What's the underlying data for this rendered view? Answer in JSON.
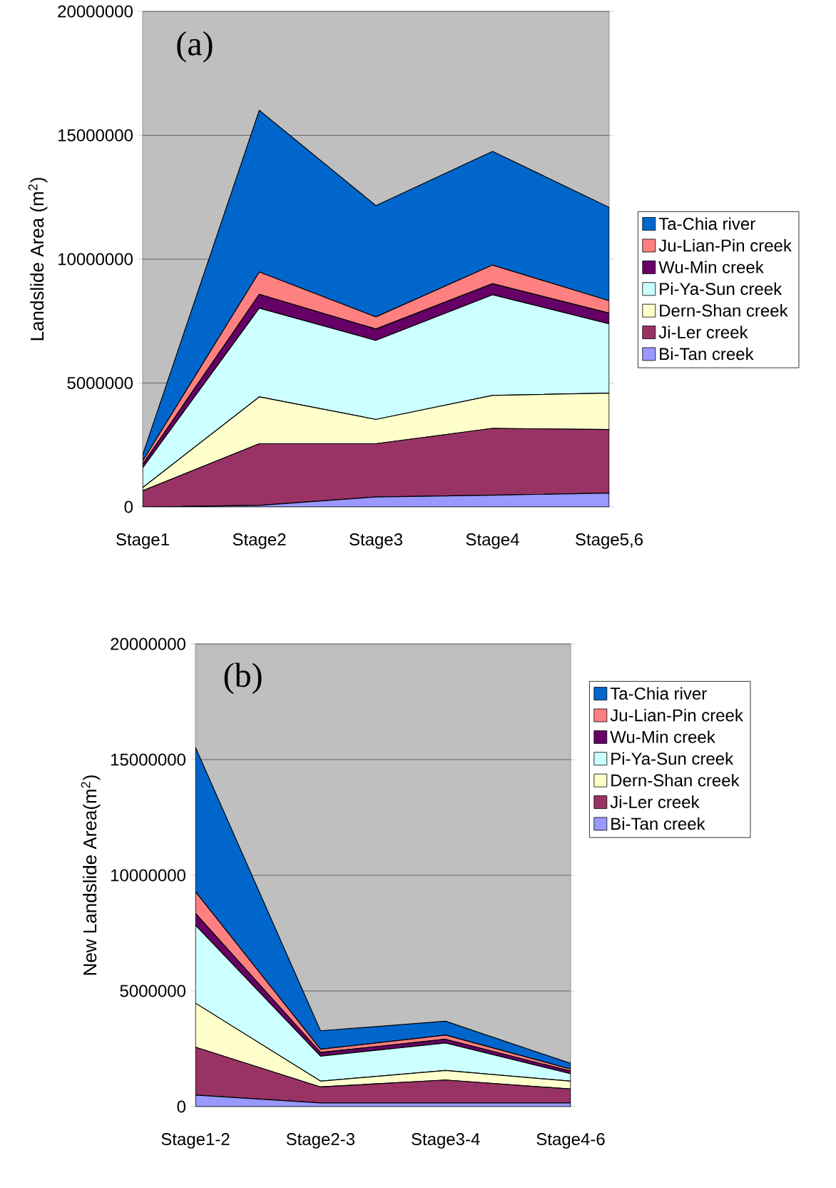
{
  "chart_data": [
    {
      "type": "area",
      "stacked": true,
      "annotations": [
        "(a)"
      ],
      "ylabel": "Landslide Area (m$^{2}$)",
      "categories": [
        "Stage1",
        "Stage2",
        "Stage3",
        "Stage4",
        "Stage5,6"
      ],
      "ylim": [
        0,
        20000000
      ],
      "yticks": [
        0,
        5000000,
        10000000,
        15000000,
        20000000
      ],
      "grid": "y",
      "legend": "right",
      "series": [
        {
          "name": "Bi-Tan creek",
          "color": "#9999ff",
          "values": [
            0,
            60000,
            400000,
            470000,
            560000
          ]
        },
        {
          "name": "Ji-Ler creek",
          "color": "#993366",
          "values": [
            650000,
            2490000,
            2150000,
            2700000,
            2560000
          ]
        },
        {
          "name": "Dern-Shan creek",
          "color": "#ffffcc",
          "values": [
            130000,
            1890000,
            980000,
            1330000,
            1470000
          ]
        },
        {
          "name": "Pi-Ya-Sun creek",
          "color": "#ccffff",
          "values": [
            790000,
            3580000,
            3190000,
            4060000,
            2800000
          ]
        },
        {
          "name": "Wu-Min creek",
          "color": "#660066",
          "values": [
            150000,
            560000,
            460000,
            450000,
            430000
          ]
        },
        {
          "name": "Ju-Lian-Pin creek",
          "color": "#ff8080",
          "values": [
            130000,
            900000,
            490000,
            750000,
            500000
          ]
        },
        {
          "name": "Ta-Chia river",
          "color": "#0066cc",
          "values": [
            250000,
            6530000,
            4490000,
            4590000,
            3770000
          ]
        }
      ]
    },
    {
      "type": "area",
      "stacked": true,
      "annotations": [
        "(b)"
      ],
      "ylabel": "New Landslide Area(m$^{2}$)",
      "categories": [
        "Stage1-2",
        "Stage2-3",
        "Stage3-4",
        "Stage4-6"
      ],
      "ylim": [
        0,
        20000000
      ],
      "yticks": [
        0,
        5000000,
        10000000,
        15000000,
        20000000
      ],
      "grid": "y",
      "legend": "right",
      "series": [
        {
          "name": "Bi-Tan creek",
          "color": "#9999ff",
          "values": [
            500000,
            160000,
            160000,
            160000
          ]
        },
        {
          "name": "Ji-Ler creek",
          "color": "#993366",
          "values": [
            2070000,
            690000,
            990000,
            600000
          ]
        },
        {
          "name": "Dern-Shan creek",
          "color": "#ffffcc",
          "values": [
            1900000,
            250000,
            410000,
            340000
          ]
        },
        {
          "name": "Pi-Ya-Sun creek",
          "color": "#ccffff",
          "values": [
            3370000,
            1080000,
            1190000,
            320000
          ]
        },
        {
          "name": "Wu-Min creek",
          "color": "#660066",
          "values": [
            510000,
            160000,
            160000,
            110000
          ]
        },
        {
          "name": "Ju-Lian-Pin creek",
          "color": "#ff8080",
          "values": [
            940000,
            140000,
            180000,
            90000
          ]
        },
        {
          "name": "Ta-Chia river",
          "color": "#0066cc",
          "values": [
            6240000,
            800000,
            600000,
            250000
          ]
        }
      ]
    }
  ]
}
